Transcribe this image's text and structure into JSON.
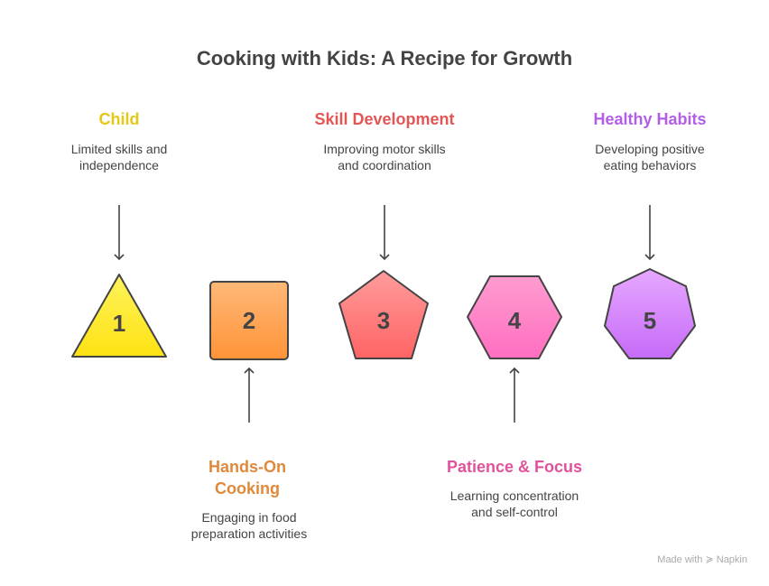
{
  "title": "Cooking with Kids: A Recipe for Growth",
  "colors": {
    "yellow": "#e3c817",
    "orange": "#e0893a",
    "red": "#e35656",
    "pink": "#e0529c",
    "purple": "#b35ee6",
    "stroke": "#444444"
  },
  "steps": [
    {
      "number": "1",
      "shape": "triangle",
      "heading": "Child",
      "description_lines": [
        "Limited skills and",
        "independence"
      ],
      "position": "top"
    },
    {
      "number": "2",
      "shape": "square",
      "heading_lines": [
        "Hands-On",
        "Cooking"
      ],
      "description_lines": [
        "Engaging in food",
        "preparation activities"
      ],
      "position": "bottom"
    },
    {
      "number": "3",
      "shape": "pentagon",
      "heading": "Skill Development",
      "description_lines": [
        "Improving motor skills",
        "and coordination"
      ],
      "position": "top"
    },
    {
      "number": "4",
      "shape": "hexagon",
      "heading": "Patience & Focus",
      "description_lines": [
        "Learning concentration",
        "and self-control"
      ],
      "position": "bottom"
    },
    {
      "number": "5",
      "shape": "heptagon",
      "heading": "Healthy Habits",
      "description_lines": [
        "Developing positive",
        "eating behaviors"
      ],
      "position": "top"
    }
  ],
  "footer": "Made with ≽ Napkin"
}
